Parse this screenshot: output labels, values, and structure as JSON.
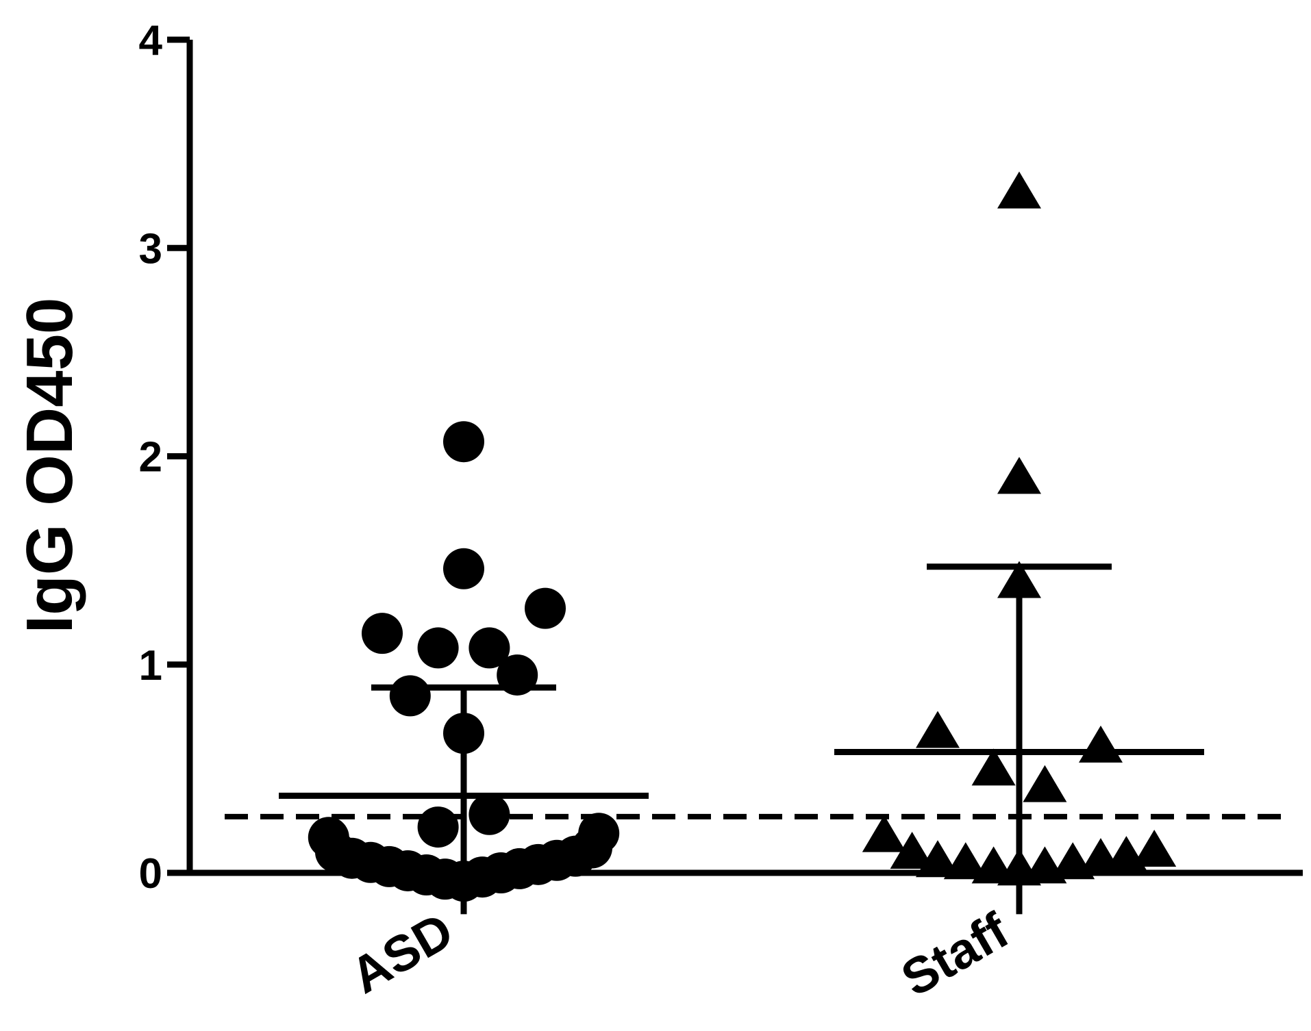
{
  "chart_data": {
    "type": "scatter",
    "ylabel": "IgG OD450",
    "xlabel": "",
    "ylim": [
      0,
      4
    ],
    "yticks": [
      "0",
      "1",
      "2",
      "3",
      "4"
    ],
    "categories": [
      "ASD",
      "Staff"
    ],
    "cutoff": 0.27,
    "grid": false,
    "legend": "none",
    "series": [
      {
        "category": "ASD",
        "marker": "circle",
        "mean": 0.37,
        "sd_upper": 0.89,
        "sd_lower": -0.1,
        "points": [
          {
            "offset": 0.0,
            "y": 2.07
          },
          {
            "offset": 0.0,
            "y": 1.46
          },
          {
            "offset": 0.35,
            "y": 1.27
          },
          {
            "offset": -0.35,
            "y": 1.15
          },
          {
            "offset": -0.11,
            "y": 1.08
          },
          {
            "offset": 0.11,
            "y": 1.08
          },
          {
            "offset": 0.23,
            "y": 0.95
          },
          {
            "offset": -0.23,
            "y": 0.85
          },
          {
            "offset": 0.0,
            "y": 0.67
          },
          {
            "offset": 0.11,
            "y": 0.28
          },
          {
            "offset": -0.11,
            "y": 0.22
          },
          {
            "offset": -0.58,
            "y": 0.17
          },
          {
            "offset": 0.58,
            "y": 0.19
          },
          {
            "offset": -0.55,
            "y": 0.1
          },
          {
            "offset": 0.55,
            "y": 0.12
          },
          {
            "offset": -0.48,
            "y": 0.07
          },
          {
            "offset": 0.48,
            "y": 0.08
          },
          {
            "offset": -0.4,
            "y": 0.05
          },
          {
            "offset": 0.4,
            "y": 0.06
          },
          {
            "offset": -0.32,
            "y": 0.03
          },
          {
            "offset": 0.32,
            "y": 0.04
          },
          {
            "offset": -0.24,
            "y": 0.01
          },
          {
            "offset": 0.24,
            "y": 0.02
          },
          {
            "offset": -0.16,
            "y": -0.01
          },
          {
            "offset": 0.16,
            "y": 0.0
          },
          {
            "offset": -0.08,
            "y": -0.03
          },
          {
            "offset": 0.08,
            "y": -0.02
          },
          {
            "offset": 0.0,
            "y": -0.04
          }
        ]
      },
      {
        "category": "Staff",
        "marker": "triangle",
        "mean": 0.58,
        "sd_upper": 1.47,
        "sd_lower": -0.1,
        "points": [
          {
            "offset": 0.0,
            "y": 3.25
          },
          {
            "offset": 0.0,
            "y": 1.88
          },
          {
            "offset": 0.0,
            "y": 1.38
          },
          {
            "offset": -0.35,
            "y": 0.66
          },
          {
            "offset": 0.35,
            "y": 0.59
          },
          {
            "offset": -0.11,
            "y": 0.48
          },
          {
            "offset": 0.11,
            "y": 0.4
          },
          {
            "offset": -0.58,
            "y": 0.16
          },
          {
            "offset": -0.46,
            "y": 0.08
          },
          {
            "offset": -0.35,
            "y": 0.04
          },
          {
            "offset": -0.23,
            "y": 0.03
          },
          {
            "offset": -0.11,
            "y": 0.01
          },
          {
            "offset": 0.0,
            "y": 0.0
          },
          {
            "offset": 0.11,
            "y": 0.01
          },
          {
            "offset": 0.23,
            "y": 0.03
          },
          {
            "offset": 0.35,
            "y": 0.05
          },
          {
            "offset": 0.46,
            "y": 0.06
          },
          {
            "offset": 0.58,
            "y": 0.09
          }
        ]
      }
    ]
  }
}
